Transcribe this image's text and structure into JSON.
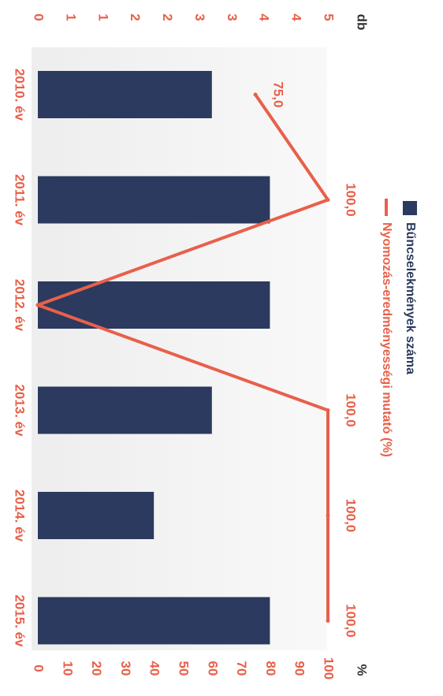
{
  "chart_data": {
    "type": "bar",
    "categories": [
      "2010. év",
      "2011. év",
      "2012. év",
      "2013. év",
      "2014. év",
      "2015. év"
    ],
    "series": [
      {
        "name": "Bűncselekmények száma",
        "type": "bar",
        "axis": "left",
        "values": [
          3,
          4,
          4,
          3,
          2,
          4
        ],
        "color": "#2b3a5e"
      },
      {
        "name": "Nyomozás-eredményességi mutató (%)",
        "type": "line",
        "axis": "right",
        "values": [
          75.0,
          100.0,
          0,
          100.0,
          100.0,
          100.0
        ],
        "data_labels": [
          "75,0",
          "100,0",
          "",
          "100,0",
          "100,0",
          "100,0"
        ],
        "color": "#e8604a"
      }
    ],
    "left_axis": {
      "label": "db",
      "ticks": [
        "0",
        "1",
        "1",
        "2",
        "2",
        "3",
        "3",
        "4",
        "4",
        "5"
      ],
      "range": [
        0,
        5
      ]
    },
    "right_axis": {
      "label": "%",
      "ticks": [
        "0",
        "10",
        "20",
        "30",
        "40",
        "50",
        "60",
        "70",
        "80",
        "90",
        "100"
      ],
      "range": [
        0,
        100
      ]
    },
    "legend_placement": "top",
    "orientation": "rotated-90-clockwise"
  }
}
